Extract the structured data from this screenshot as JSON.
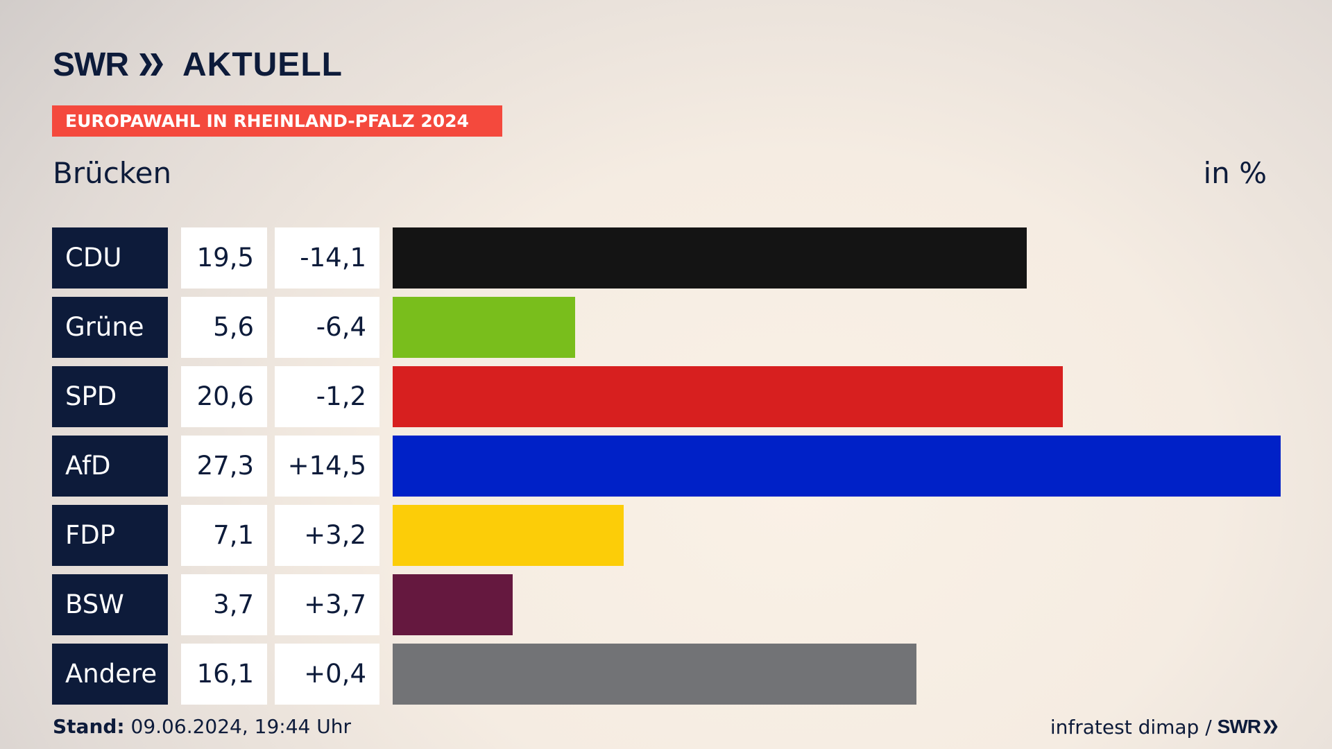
{
  "brand": {
    "logo_text": "SWR",
    "product": "AKTUELL",
    "footer_logo_text": "SWR"
  },
  "banner": "EUROPAWAHL IN RHEINLAND-PFALZ 2024",
  "location": "Brücken",
  "unit": "in %",
  "colors": {
    "accent": "#f4493d",
    "navy": "#0d1b3a"
  },
  "chart_data": {
    "type": "bar",
    "orientation": "horizontal",
    "title": "Brücken",
    "unit": "in %",
    "xlim": [
      0,
      27.3
    ],
    "grid": false,
    "categories": [
      "CDU",
      "Grüne",
      "SPD",
      "AfD",
      "FDP",
      "BSW",
      "Andere"
    ],
    "values": [
      19.5,
      5.6,
      20.6,
      27.3,
      7.1,
      3.7,
      16.1
    ],
    "values_label": [
      "19,5",
      "5,6",
      "20,6",
      "27,3",
      "7,1",
      "3,7",
      "16,1"
    ],
    "change_label": [
      "-14,1",
      "-6,4",
      "-1,2",
      "+14,5",
      "+3,2",
      "+3,7",
      "+0,4"
    ],
    "change": [
      -14.1,
      -6.4,
      -1.2,
      14.5,
      3.2,
      3.7,
      0.4
    ],
    "bar_colors": [
      "#141414",
      "#79be1c",
      "#d71f1f",
      "#0021c7",
      "#fccd08",
      "#65183f",
      "#727376"
    ]
  },
  "footer": {
    "stand_label": "Stand:",
    "timestamp": "09.06.2024, 19:44 Uhr",
    "source": "infratest dimap /"
  }
}
